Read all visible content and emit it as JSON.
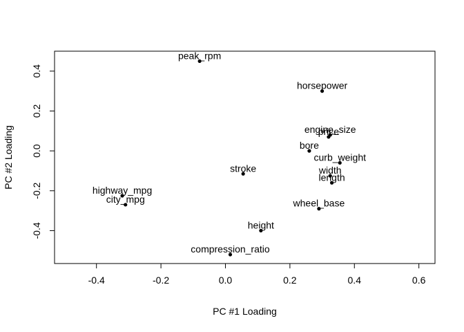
{
  "chart_data": {
    "type": "scatter",
    "title": "",
    "xlabel": "PC #1 Loading",
    "ylabel": "PC #2 Loading",
    "xlim": [
      -0.53,
      0.65
    ],
    "ylim": [
      -0.565,
      0.5
    ],
    "xticks": [
      -0.4,
      -0.2,
      0.0,
      0.2,
      0.4,
      0.6
    ],
    "xtick_labels": [
      "-0.4",
      "-0.2",
      "0.0",
      "0.2",
      "0.4",
      "0.6"
    ],
    "yticks": [
      -0.4,
      -0.2,
      0.0,
      0.2,
      0.4
    ],
    "ytick_labels": [
      "-0.4",
      "-0.2",
      "0.0",
      "0.2",
      "0.4"
    ],
    "grid": false,
    "legend": "none",
    "point_color": "#000000",
    "points": [
      {
        "label": "peak_rpm",
        "x": -0.08,
        "y": 0.45
      },
      {
        "label": "horsepower",
        "x": 0.3,
        "y": 0.3
      },
      {
        "label": "engine_size",
        "x": 0.325,
        "y": 0.08
      },
      {
        "label": "price",
        "x": 0.32,
        "y": 0.07
      },
      {
        "label": "bore",
        "x": 0.26,
        "y": 0.0
      },
      {
        "label": "curb_weight",
        "x": 0.355,
        "y": -0.06
      },
      {
        "label": "stroke",
        "x": 0.055,
        "y": -0.115
      },
      {
        "label": "width",
        "x": 0.325,
        "y": -0.125
      },
      {
        "label": "length",
        "x": 0.33,
        "y": -0.16
      },
      {
        "label": "highway_mpg",
        "x": -0.32,
        "y": -0.225
      },
      {
        "label": "city_mpg",
        "x": -0.31,
        "y": -0.27
      },
      {
        "label": "wheel_base",
        "x": 0.29,
        "y": -0.29
      },
      {
        "label": "height",
        "x": 0.11,
        "y": -0.4
      },
      {
        "label": "compression_ratio",
        "x": 0.015,
        "y": -0.52
      }
    ]
  }
}
